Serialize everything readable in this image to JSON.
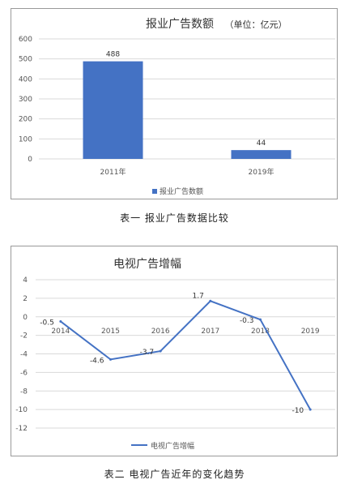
{
  "chart_data": [
    {
      "type": "bar",
      "title": "报业广告数额",
      "subtitle": "（单位：亿元）",
      "categories": [
        "2011年",
        "2019年"
      ],
      "series": [
        {
          "name": "报业广告数额",
          "values": [
            488,
            44
          ]
        }
      ],
      "data_labels": [
        "488",
        "44"
      ],
      "ylim": [
        0,
        600
      ],
      "yticks": [
        0,
        100,
        200,
        300,
        400,
        500,
        600
      ],
      "grid": true,
      "legend_position": "bottom",
      "bar_color": "#4472c4",
      "caption": "表一  报业广告数据比较"
    },
    {
      "type": "line",
      "title": "电视广告增幅",
      "categories": [
        "2014",
        "2015",
        "2016",
        "2017",
        "2018",
        "2019"
      ],
      "series": [
        {
          "name": "电视广告增幅",
          "values": [
            -0.5,
            -4.6,
            -3.7,
            1.7,
            -0.3,
            -10
          ]
        }
      ],
      "data_labels": [
        "-0.5",
        "-4.6",
        "-3.7",
        "1.7",
        "-0.3",
        "-10"
      ],
      "ylim": [
        -12,
        4
      ],
      "yticks": [
        4,
        2,
        0,
        -2,
        -4,
        -6,
        -8,
        -10,
        -12
      ],
      "grid": true,
      "legend_position": "bottom",
      "line_color": "#4472c4",
      "caption": "表二  电视广告近年的变化趋势"
    }
  ]
}
